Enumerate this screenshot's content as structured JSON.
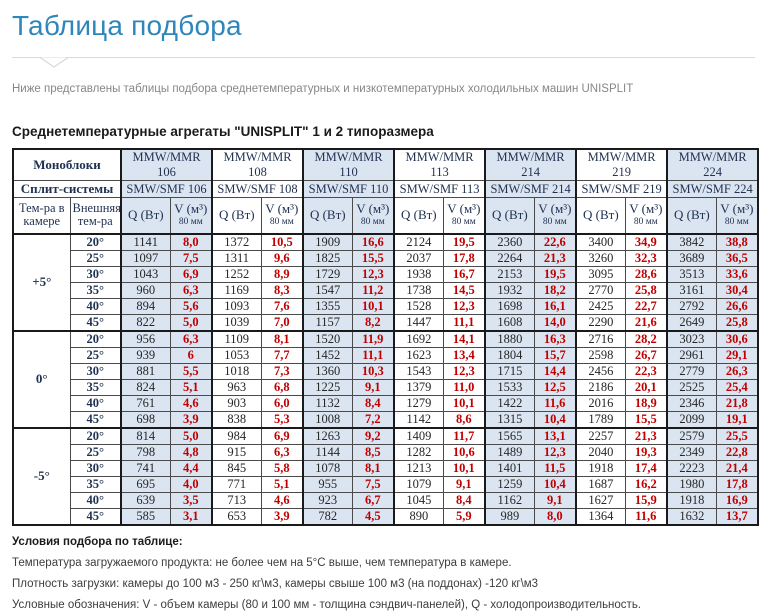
{
  "page": {
    "title": "Таблица подбора",
    "subtitle": "Ниже представлены таблицы подбора среднетемпературных и низкотемпературных холодильных машин UNISPLIT",
    "section_heading": "Среднетемпературные агрегаты \"UNISPLIT\" 1 и 2 типоразмера"
  },
  "colors": {
    "accent_title": "#2f86ba",
    "header_fill": "#dbe5f1",
    "v_value_red": "#c00000",
    "table_text_navy": "#1f3050"
  },
  "table": {
    "row1_label": "Моноблоки",
    "row2_label": "Сплит-системы",
    "col1_header": "Тем-ра в камере",
    "col2_header": "Внешняя тем-ра",
    "q_header": "Q (Вт)",
    "v_header": "V (м³)",
    "v_subheader": "80 мм",
    "models_mono": [
      "MMW/MMR 106",
      "MMW/MMR 108",
      "MMW/MMR 110",
      "MMW/MMR 113",
      "MMW/MMR 214",
      "MMW/MMR 219",
      "MMW/MMR 224"
    ],
    "models_split": [
      "SMW/SMF 106",
      "SMW/SMF 108",
      "SMW/SMF 110",
      "SMW/SMF 113",
      "SMW/SMF 214",
      "SMW/SMF 219",
      "SMW/SMF 224"
    ],
    "temp_groups": [
      {
        "chamber": "+5°",
        "rows": [
          {
            "ext": "20°",
            "qv": [
              "1141",
              "8,0",
              "1372",
              "10,5",
              "1909",
              "16,6",
              "2124",
              "19,5",
              "2360",
              "22,6",
              "3400",
              "34,9",
              "3842",
              "38,8"
            ]
          },
          {
            "ext": "25°",
            "qv": [
              "1097",
              "7,5",
              "1311",
              "9,6",
              "1825",
              "15,5",
              "2037",
              "17,8",
              "2264",
              "21,3",
              "3260",
              "32,3",
              "3689",
              "36,5"
            ]
          },
          {
            "ext": "30°",
            "qv": [
              "1043",
              "6,9",
              "1252",
              "8,9",
              "1729",
              "12,3",
              "1938",
              "16,7",
              "2153",
              "19,5",
              "3095",
              "28,6",
              "3513",
              "33,6"
            ]
          },
          {
            "ext": "35°",
            "qv": [
              "960",
              "6,3",
              "1169",
              "8,3",
              "1547",
              "11,2",
              "1738",
              "14,5",
              "1932",
              "18,2",
              "2770",
              "25,8",
              "3161",
              "30,4"
            ]
          },
          {
            "ext": "40°",
            "qv": [
              "894",
              "5,6",
              "1093",
              "7,6",
              "1355",
              "10,1",
              "1528",
              "12,3",
              "1698",
              "16,1",
              "2425",
              "22,7",
              "2792",
              "26,6"
            ]
          },
          {
            "ext": "45°",
            "qv": [
              "822",
              "5,0",
              "1039",
              "7,0",
              "1157",
              "8,2",
              "1447",
              "11,1",
              "1608",
              "14,0",
              "2290",
              "21,6",
              "2649",
              "25,8"
            ]
          }
        ]
      },
      {
        "chamber": "0°",
        "rows": [
          {
            "ext": "20°",
            "qv": [
              "956",
              "6,3",
              "1109",
              "8,1",
              "1520",
              "11,9",
              "1692",
              "14,1",
              "1880",
              "16,3",
              "2716",
              "28,2",
              "3023",
              "30,6"
            ]
          },
          {
            "ext": "25°",
            "qv": [
              "939",
              "6",
              "1053",
              "7,7",
              "1452",
              "11,1",
              "1623",
              "13,4",
              "1804",
              "15,7",
              "2598",
              "26,7",
              "2961",
              "29,1"
            ]
          },
          {
            "ext": "30°",
            "qv": [
              "881",
              "5,5",
              "1018",
              "7,3",
              "1360",
              "10,3",
              "1543",
              "12,3",
              "1715",
              "14,4",
              "2456",
              "22,3",
              "2779",
              "26,3"
            ]
          },
          {
            "ext": "35°",
            "qv": [
              "824",
              "5,1",
              "963",
              "6,8",
              "1225",
              "9,1",
              "1379",
              "11,0",
              "1533",
              "12,5",
              "2186",
              "20,1",
              "2525",
              "25,4"
            ]
          },
          {
            "ext": "40°",
            "qv": [
              "761",
              "4,6",
              "903",
              "6,0",
              "1132",
              "8,4",
              "1279",
              "10,1",
              "1422",
              "11,6",
              "2016",
              "18,9",
              "2346",
              "21,8"
            ]
          },
          {
            "ext": "45°",
            "qv": [
              "698",
              "3,9",
              "838",
              "5,3",
              "1008",
              "7,2",
              "1142",
              "8,6",
              "1315",
              "10,4",
              "1789",
              "15,5",
              "2099",
              "19,1"
            ]
          }
        ]
      },
      {
        "chamber": "-5°",
        "rows": [
          {
            "ext": "20°",
            "qv": [
              "814",
              "5,0",
              "984",
              "6,9",
              "1263",
              "9,2",
              "1409",
              "11,7",
              "1565",
              "13,1",
              "2257",
              "21,3",
              "2579",
              "25,5"
            ]
          },
          {
            "ext": "25°",
            "qv": [
              "798",
              "4,8",
              "915",
              "6,3",
              "1144",
              "8,5",
              "1282",
              "10,6",
              "1489",
              "12,3",
              "2040",
              "19,3",
              "2349",
              "22,8"
            ]
          },
          {
            "ext": "30°",
            "qv": [
              "741",
              "4,4",
              "845",
              "5,8",
              "1078",
              "8,1",
              "1213",
              "10,1",
              "1401",
              "11,5",
              "1918",
              "17,4",
              "2223",
              "21,4"
            ]
          },
          {
            "ext": "35°",
            "qv": [
              "695",
              "4,0",
              "771",
              "5,1",
              "955",
              "7,5",
              "1079",
              "9,1",
              "1259",
              "10,4",
              "1687",
              "16,2",
              "1980",
              "17,8"
            ]
          },
          {
            "ext": "40°",
            "qv": [
              "639",
              "3,5",
              "713",
              "4,6",
              "923",
              "6,7",
              "1045",
              "8,4",
              "1162",
              "9,1",
              "1627",
              "15,9",
              "1918",
              "16,9"
            ]
          },
          {
            "ext": "45°",
            "qv": [
              "585",
              "3,1",
              "653",
              "3,9",
              "782",
              "4,5",
              "890",
              "5,9",
              "989",
              "8,0",
              "1364",
              "11,6",
              "1632",
              "13,7"
            ]
          }
        ]
      }
    ]
  },
  "footer": {
    "notes_title": "Условия подбора по таблице:",
    "note_product": "Температура загружаемого продукта:   не более чем на 5°С выше, чем температура в камере.",
    "note_density": "Плотность загрузки:   камеры до 100 м3 - 250 кг\\м3,   камеры свыше 100 м3 (на поддонах)   -120 кг\\м3",
    "note_legend": "Условные обозначения: V - объем камеры (80 и 100 мм  - толщина сэндвич-панелей), Q - холодопроизводительность."
  }
}
